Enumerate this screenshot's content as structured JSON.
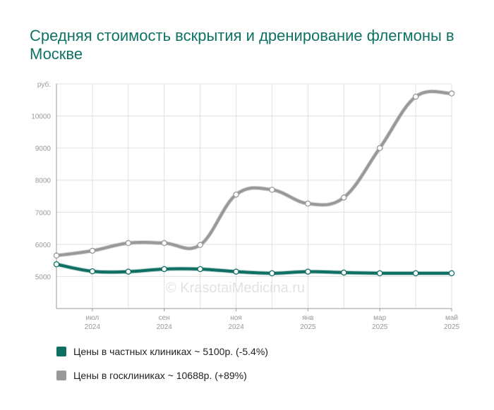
{
  "title": "Средняя стоимость вскрытия и дренирование флегмоны в Москве",
  "watermark": "© KrasotaiMedicina.ru",
  "colors": {
    "private": "#0e6f62",
    "public": "#999999",
    "grid": "#e0e0e0",
    "axis": "#999999"
  },
  "chart_data": {
    "type": "line",
    "y_unit": "руб.",
    "ylim": [
      4000,
      11000
    ],
    "y_ticks": [
      {
        "value": 5000,
        "label": "5000"
      },
      {
        "value": 6000,
        "label": "6000"
      },
      {
        "value": 7000,
        "label": "7000"
      },
      {
        "value": 8000,
        "label": "8000"
      },
      {
        "value": 9000,
        "label": "9000"
      },
      {
        "value": 10000,
        "label": "10000"
      }
    ],
    "grid": true,
    "legend_position": "bottom-left",
    "x": [
      "2024-06",
      "2024-07",
      "2024-08",
      "2024-09",
      "2024-10",
      "2024-11",
      "2024-12",
      "2025-01",
      "2025-02",
      "2025-03",
      "2025-04",
      "2025-05"
    ],
    "x_labels": [
      {
        "month": "июл",
        "year": "2024"
      },
      {
        "month": "сен",
        "year": "2024"
      },
      {
        "month": "ноя",
        "year": "2024"
      },
      {
        "month": "янв",
        "year": "2025"
      },
      {
        "month": "мар",
        "year": "2025"
      },
      {
        "month": "май",
        "year": "2025"
      }
    ],
    "series": [
      {
        "key": "public",
        "name": "Цены в госклиниках ~ 10688р. (+89%)",
        "color": "#999999",
        "values": [
          5650,
          5800,
          6040,
          6040,
          5980,
          7550,
          7700,
          7270,
          7460,
          9000,
          10600,
          10700
        ]
      },
      {
        "key": "private",
        "name": "Цены в частных клиниках ~ 5100р. (-5.4%)",
        "color": "#0e6f62",
        "values": [
          5380,
          5160,
          5150,
          5230,
          5230,
          5150,
          5100,
          5150,
          5120,
          5100,
          5100,
          5100
        ]
      }
    ]
  },
  "legend": [
    {
      "label": "Цены в частных клиниках ~ 5100р. (-5.4%)",
      "color": "#0e6f62"
    },
    {
      "label": "Цены в госклиниках ~ 10688р. (+89%)",
      "color": "#999999"
    }
  ]
}
